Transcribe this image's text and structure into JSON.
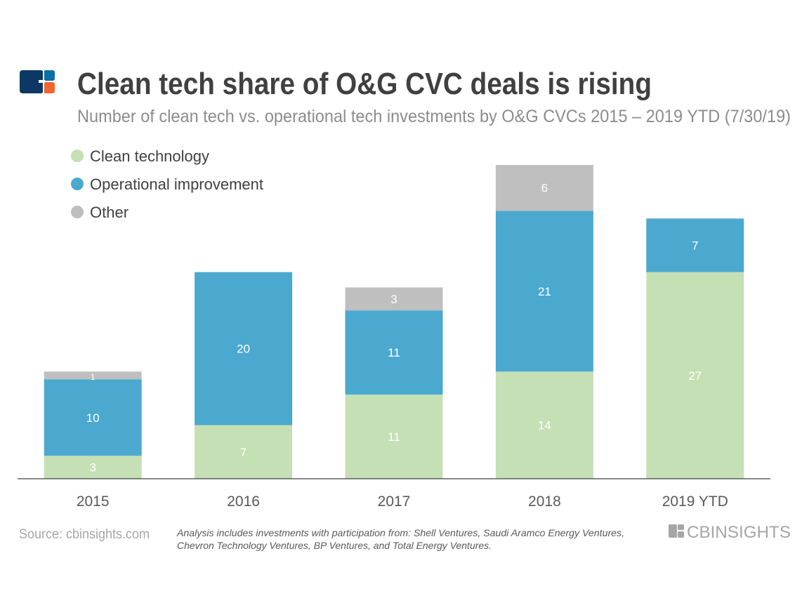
{
  "header": {
    "title": "Clean tech share of O&G CVC deals is rising",
    "subtitle": "Number of clean tech vs. operational tech investments by O&G CVCs 2015 – 2019 YTD (7/30/19)"
  },
  "footer": {
    "source": "Source: cbinsights.com",
    "note_line1": "Analysis includes investments with participation from: Shell Ventures, Saudi Aramco Energy Ventures,",
    "note_line2": "Chevron Technology Ventures, BP Ventures, and Total Energy Ventures.",
    "brand": "CBINSIGHTS"
  },
  "colors": {
    "clean": "#c5e0b4",
    "operational": "#4ba9cf",
    "other": "#bfbfbf",
    "title": "#404040",
    "subtitle": "#8c8c8c",
    "logo_navy": "#0d3863",
    "logo_blue": "#0a6fa8",
    "logo_orange": "#f26531"
  },
  "chart_data": {
    "type": "bar",
    "stacked": true,
    "categories": [
      "2015",
      "2016",
      "2017",
      "2018",
      "2019 YTD"
    ],
    "series": [
      {
        "name": "Clean technology",
        "color": "#c5e0b4",
        "values": [
          3,
          7,
          11,
          14,
          27
        ]
      },
      {
        "name": "Operational improvement",
        "color": "#4ba9cf",
        "values": [
          10,
          20,
          11,
          21,
          7
        ]
      },
      {
        "name": "Other",
        "color": "#bfbfbf",
        "values": [
          1,
          0,
          3,
          6,
          0
        ]
      }
    ],
    "ylim": [
      0,
      41
    ],
    "grid": false,
    "legend": "top-left",
    "data_labels": true
  }
}
